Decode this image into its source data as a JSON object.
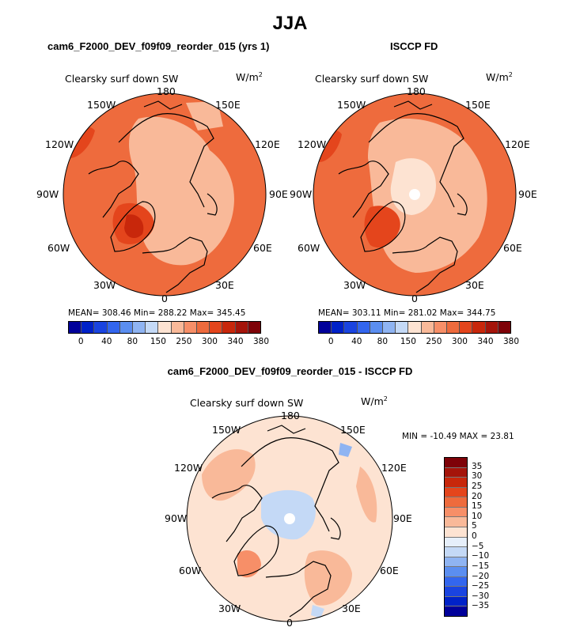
{
  "figure": {
    "season": "JJA"
  },
  "colors": {
    "land_line": "#000000",
    "ocean_bg": "#ee6b3d",
    "scale_abs": [
      "#00009a",
      "#0022c8",
      "#1a44e0",
      "#3366ee",
      "#5b8ef0",
      "#8fb4f2",
      "#c4d9f6",
      "#fde3d2",
      "#f9b999",
      "#f78f68",
      "#ee6b3d",
      "#e4451c",
      "#c8270b",
      "#a5140a",
      "#7e0208"
    ],
    "scale_diff": [
      "#00009a",
      "#0022c8",
      "#1a44e0",
      "#3366ee",
      "#5b8ef0",
      "#8fb4f2",
      "#c4d9f6",
      "#e6effa",
      "#fde3d2",
      "#f9b999",
      "#f78f68",
      "#ee6b3d",
      "#e4451c",
      "#c8270b",
      "#a5140a",
      "#7e0208"
    ]
  },
  "chart_data": [
    {
      "type": "heatmap",
      "projection": "north-polar-stereographic",
      "title": "cam6_F2000_DEV_f09f09_reorder_015 (yrs 1)",
      "variable": "Clearsky surf down SW",
      "units": "W/m",
      "units_exp": "2",
      "lon_labels": [
        "180",
        "150E",
        "120E",
        "90E",
        "60E",
        "30E",
        "0",
        "30W",
        "60W",
        "90W",
        "120W",
        "150W"
      ],
      "stats_text": "MEAN= 308.46   Min= 288.22   Max= 345.45",
      "mean": 308.46,
      "min": 288.22,
      "max": 345.45,
      "colorbar_levels": [
        0,
        40,
        80,
        150,
        250,
        300,
        340,
        380
      ],
      "colorbar_labels": [
        "0",
        "40",
        "80",
        "150",
        "250",
        "300",
        "340",
        "380"
      ]
    },
    {
      "type": "heatmap",
      "projection": "north-polar-stereographic",
      "title": "ISCCP FD",
      "variable": "Clearsky surf down SW",
      "units": "W/m",
      "units_exp": "2",
      "lon_labels": [
        "180",
        "150E",
        "120E",
        "90E",
        "60E",
        "30E",
        "0",
        "30W",
        "60W",
        "90W",
        "120W",
        "150W"
      ],
      "stats_text": "MEAN= 303.11   Min= 281.02   Max= 344.75",
      "mean": 303.11,
      "min": 281.02,
      "max": 344.75,
      "colorbar_levels": [
        0,
        40,
        80,
        150,
        250,
        300,
        340,
        380
      ],
      "colorbar_labels": [
        "0",
        "40",
        "80",
        "150",
        "250",
        "300",
        "340",
        "380"
      ]
    },
    {
      "type": "heatmap",
      "projection": "north-polar-stereographic",
      "title": "cam6_F2000_DEV_f09f09_reorder_015 - ISCCP FD",
      "variable": "Clearsky surf down SW",
      "units": "W/m",
      "units_exp": "2",
      "lon_labels": [
        "180",
        "150E",
        "120E",
        "90E",
        "60E",
        "30E",
        "0",
        "30W",
        "60W",
        "90W",
        "120W",
        "150W"
      ],
      "stats_text": "MIN = -10.49 MAX =  23.81",
      "min": -10.49,
      "max": 23.81,
      "colorbar_levels": [
        35,
        30,
        25,
        20,
        15,
        10,
        5,
        0,
        -5,
        -10,
        -15,
        -20,
        -25,
        -30,
        -35
      ],
      "colorbar_labels": [
        "35",
        "30",
        "25",
        "20",
        "15",
        "10",
        "5",
        "0",
        "−5",
        "−10",
        "−15",
        "−20",
        "−25",
        "−30",
        "−35"
      ]
    }
  ]
}
